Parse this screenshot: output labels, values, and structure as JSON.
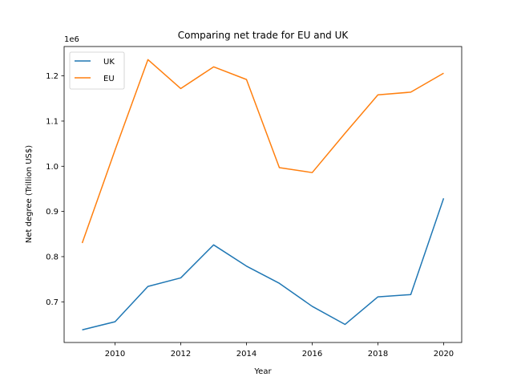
{
  "chart_data": {
    "type": "line",
    "title": "Comparing net trade for EU and UK",
    "xlabel": "Year",
    "ylabel": "Net degree (Trillion US$)",
    "offset_text": "1e6",
    "x": [
      2009,
      2010,
      2011,
      2012,
      2013,
      2014,
      2015,
      2016,
      2017,
      2018,
      2019,
      2020
    ],
    "series": [
      {
        "name": "UK",
        "color": "#1f77b4",
        "values": [
          638000,
          656000,
          734000,
          753000,
          826000,
          779000,
          741000,
          690000,
          650000,
          711000,
          716000,
          929000
        ]
      },
      {
        "name": "EU",
        "color": "#ff7f0e",
        "values": [
          830000,
          1036000,
          1236000,
          1172000,
          1220000,
          1192000,
          997000,
          986000,
          1073000,
          1158000,
          1164000,
          1206000
        ]
      }
    ],
    "xlim": [
      2008.45,
      2020.55
    ],
    "ylim": [
      610000,
      1265000
    ],
    "xticks": [
      2010,
      2012,
      2014,
      2016,
      2018,
      2020
    ],
    "xtick_labels": [
      "2010",
      "2012",
      "2014",
      "2016",
      "2018",
      "2020"
    ],
    "yticks": [
      700000,
      800000,
      900000,
      1000000,
      1100000,
      1200000
    ],
    "ytick_labels": [
      "0.7",
      "0.8",
      "0.9",
      "1.0",
      "1.1",
      "1.2"
    ],
    "grid": false,
    "legend_position": "top-left"
  }
}
